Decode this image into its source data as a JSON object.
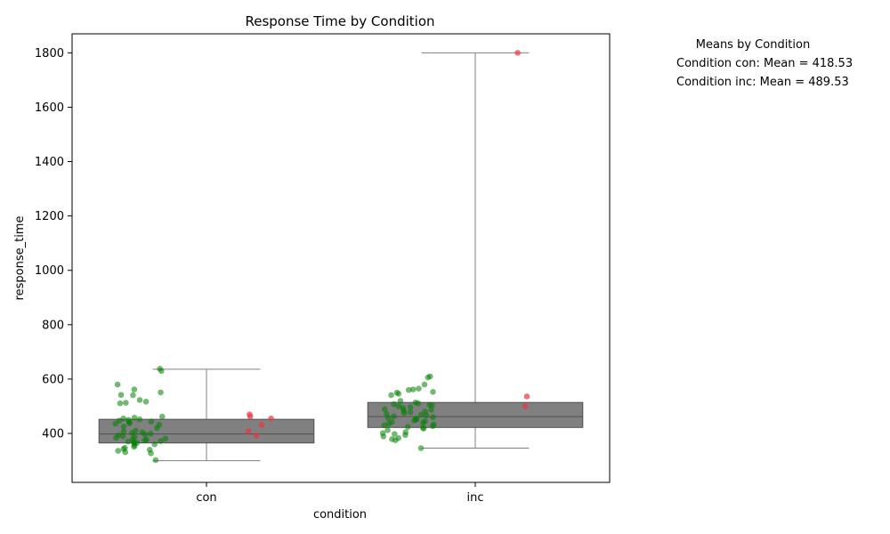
{
  "chart_data": {
    "type": "box",
    "title": "Response Time by Condition",
    "xlabel": "condition",
    "ylabel": "response_time",
    "categories": [
      "con",
      "inc"
    ],
    "ylim": [
      220,
      1870
    ],
    "y_ticks": [
      400,
      600,
      800,
      1000,
      1200,
      1400,
      1600,
      1800
    ],
    "grid": false,
    "box_color": "#808080",
    "point_color_green": "#008000",
    "point_color_red": "#e8383d",
    "boxes": [
      {
        "category": "con",
        "whisker_low": 300,
        "q1": 365,
        "median": 398,
        "q3": 452,
        "whisker_high": 636
      },
      {
        "category": "inc",
        "whisker_low": 346,
        "q1": 422,
        "median": 462,
        "q3": 514,
        "whisker_high": 1800
      }
    ],
    "points_green": [
      {
        "category": "con",
        "values": [
          638,
          630,
          580,
          562,
          551,
          542,
          541,
          523,
          517,
          513,
          511,
          462,
          458,
          455,
          452,
          450,
          447,
          444,
          441,
          438,
          436,
          432,
          425,
          420,
          410,
          406,
          404,
          402,
          399,
          396,
          393,
          390,
          387,
          384,
          381,
          379,
          377,
          375,
          372,
          370,
          368,
          365,
          363,
          360,
          356,
          351,
          347,
          343,
          340,
          336,
          331,
          327,
          302
        ]
      },
      {
        "category": "inc",
        "values": [
          610,
          606,
          580,
          565,
          562,
          560,
          553,
          550,
          546,
          541,
          520,
          514,
          511,
          508,
          505,
          503,
          500,
          497,
          494,
          490,
          487,
          484,
          481,
          478,
          475,
          472,
          469,
          466,
          463,
          460,
          457,
          454,
          451,
          448,
          445,
          442,
          439,
          436,
          433,
          430,
          427,
          424,
          421,
          418,
          412,
          405,
          401,
          398,
          394,
          389,
          383,
          379,
          375,
          346
        ]
      }
    ],
    "points_red": [
      {
        "category": "con",
        "values": [
          470,
          462,
          455,
          432,
          408,
          392
        ]
      },
      {
        "category": "inc",
        "values": [
          1800,
          536,
          500
        ]
      }
    ],
    "legend_title": "Means by Condition",
    "means": [
      {
        "label": "Condition con: Mean = 418.53"
      },
      {
        "label": "Condition inc: Mean = 489.53"
      }
    ]
  }
}
